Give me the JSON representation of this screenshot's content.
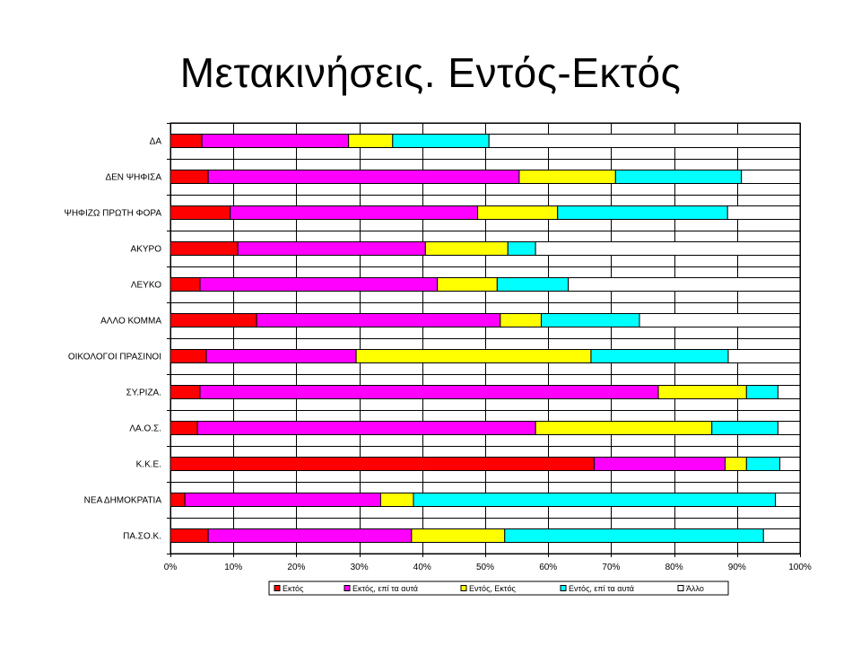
{
  "title": "Μετακινήσεις. Εντός-Εκτός",
  "chart_data": {
    "type": "bar",
    "orientation": "horizontal",
    "stacked": "percent",
    "categories": [
      "ΔΑ",
      "ΔΕΝ ΨΗΦΙΣΑ",
      "ΨΗΦΙΖΩ ΠΡΩΤΗ ΦΟΡΑ",
      "ΑΚΥΡΟ",
      "ΛΕΥΚΟ",
      "ΑΛΛΟ ΚΟΜΜΑ",
      "ΟΙΚΟΛΟΓΟΙ ΠΡΑΣΙΝΟΙ",
      "ΣΥ.ΡΙΖΑ.",
      "ΛΑ.Ο.Σ.",
      "Κ.Κ.Ε.",
      "ΝΕΑ ΔΗΜΟΚΡΑΤΙΑ",
      "ΠΑ.ΣΟ.Κ."
    ],
    "series": [
      {
        "name": "Εκτός",
        "color": "#ff0000",
        "values": [
          5,
          6,
          9.5,
          10.7,
          4.7,
          13.7,
          5.7,
          4.7,
          4.3,
          67.3,
          2.3,
          6
        ]
      },
      {
        "name": "Εκτός, επί τα αυτά",
        "color": "#ff00ff",
        "values": [
          23.3,
          49.4,
          39.3,
          29.8,
          37.7,
          38.7,
          23.8,
          72.8,
          53.7,
          20.8,
          31.1,
          32.3
        ]
      },
      {
        "name": "Εντός, Εκτός",
        "color": "#ffff00",
        "values": [
          7,
          15.3,
          12.7,
          13.1,
          9.5,
          6.5,
          37.3,
          14,
          28,
          3.4,
          5.2,
          14.8
        ]
      },
      {
        "name": "Εντός, επί τα αυτά",
        "color": "#00ffff",
        "values": [
          15.3,
          20,
          27,
          4.4,
          11.3,
          15.6,
          21.8,
          5,
          10.5,
          5.3,
          57.5,
          41.1
        ]
      },
      {
        "name": "Άλλο",
        "color": "#ffffff",
        "values": [
          49.4,
          9.3,
          11.5,
          42,
          36.8,
          25.5,
          11.4,
          3.5,
          3.5,
          3.2,
          3.9,
          5.8
        ]
      }
    ],
    "xlim": [
      0,
      100
    ],
    "xticks": [
      "0%",
      "10%",
      "20%",
      "30%",
      "40%",
      "50%",
      "60%",
      "70%",
      "80%",
      "90%",
      "100%"
    ],
    "grid": true,
    "legend": "bottom"
  }
}
